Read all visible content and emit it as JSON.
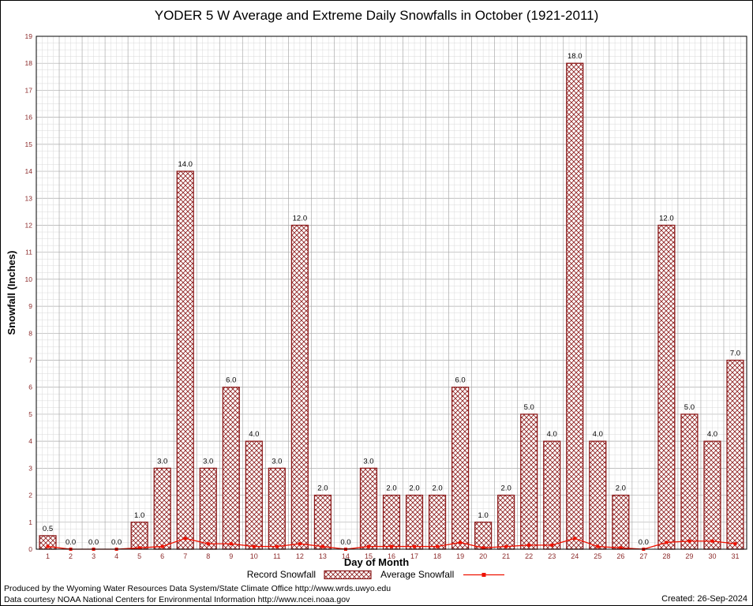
{
  "chart_data": {
    "type": "bar",
    "title": "YODER 5 W Average and Extreme Daily Snowfalls in October (1921-2011)",
    "xlabel": "Day of Month",
    "ylabel": "Snowfall (Inches)",
    "ylim": [
      0,
      19
    ],
    "y_major_step": 1,
    "y_minor_step": 0.25,
    "grid": true,
    "legend_position": "bottom",
    "categories": [
      1,
      2,
      3,
      4,
      5,
      6,
      7,
      8,
      9,
      10,
      11,
      12,
      13,
      14,
      15,
      16,
      17,
      18,
      19,
      20,
      21,
      22,
      23,
      24,
      25,
      26,
      27,
      28,
      29,
      30,
      31
    ],
    "series": [
      {
        "name": "Record Snowfall",
        "type": "bar",
        "values": [
          0.5,
          0.0,
          0.0,
          0.0,
          1.0,
          3.0,
          14.0,
          3.0,
          6.0,
          4.0,
          3.0,
          12.0,
          2.0,
          0.0,
          3.0,
          2.0,
          2.0,
          2.0,
          6.0,
          1.0,
          2.0,
          5.0,
          4.0,
          18.0,
          4.0,
          2.0,
          0.0,
          12.0,
          5.0,
          4.0,
          7.0
        ]
      },
      {
        "name": "Average Snowfall",
        "type": "line",
        "values": [
          0.1,
          0.0,
          0.0,
          0.0,
          0.05,
          0.1,
          0.4,
          0.2,
          0.2,
          0.1,
          0.1,
          0.2,
          0.1,
          0.0,
          0.1,
          0.1,
          0.1,
          0.1,
          0.25,
          0.05,
          0.1,
          0.15,
          0.15,
          0.4,
          0.1,
          0.05,
          0.0,
          0.25,
          0.3,
          0.3,
          0.2
        ]
      }
    ],
    "colors": {
      "bar_edge": "#8b1a1a",
      "bar_hatch": "#8b1a1a",
      "line": "#ee1100",
      "tick_label": "#8b2a2a",
      "grid_minor": "#d9d9d9",
      "grid_major": "#ababab",
      "value_label": "#000000"
    }
  },
  "legend": {
    "record_label": "Record Snowfall",
    "average_label": "Average Snowfall"
  },
  "footer": {
    "line1": "Produced by the Wyoming Water Resources Data System/State Climate Office http://www.wrds.uwyo.edu",
    "line2": "Data courtesy NOAA National Centers for Environmental Information http://www.ncei.noaa.gov",
    "created": "Created: 26-Sep-2024"
  }
}
